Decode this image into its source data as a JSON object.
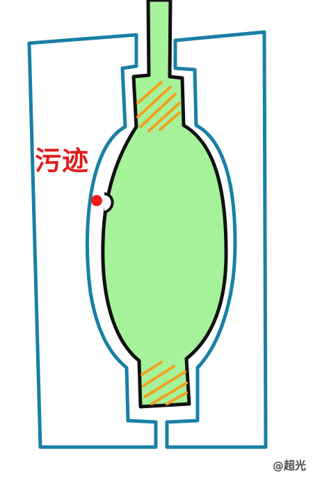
{
  "diagram": {
    "annotation_label": "污迹",
    "watermark": "@超光",
    "colors": {
      "mold_outline": "#1a7fa5",
      "part_fill": "#a6f29a",
      "part_outline": "#111111",
      "hatch": "#f0a01e",
      "stain_dot": "#ee1c1c",
      "label": "#e01c1c"
    }
  }
}
